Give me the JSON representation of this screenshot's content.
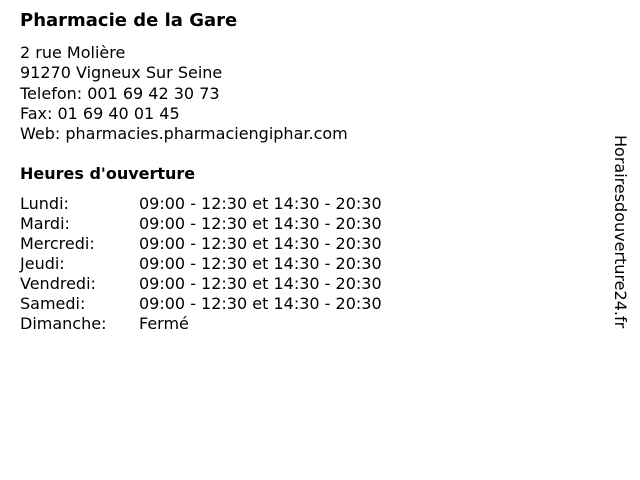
{
  "pharmacy": {
    "name": "Pharmacie de la Gare",
    "address_line1": "2 rue Molière",
    "address_line2": "91270 Vigneux Sur Seine",
    "phone": "Telefon: 001 69 42 30 73",
    "fax": "Fax: 01 69 40 01 45",
    "web": "Web: pharmacies.pharmaciengiphar.com"
  },
  "hours": {
    "title": "Heures d'ouverture",
    "rows": [
      {
        "day": "Lundi:",
        "time": "09:00 - 12:30 et 14:30 - 20:30"
      },
      {
        "day": "Mardi:",
        "time": "09:00 - 12:30 et 14:30 - 20:30"
      },
      {
        "day": "Mercredi:",
        "time": "09:00 - 12:30 et 14:30 - 20:30"
      },
      {
        "day": "Jeudi:",
        "time": "09:00 - 12:30 et 14:30 - 20:30"
      },
      {
        "day": "Vendredi:",
        "time": "09:00 - 12:30 et 14:30 - 20:30"
      },
      {
        "day": "Samedi:",
        "time": "09:00 - 12:30 et 14:30 - 20:30"
      },
      {
        "day": "Dimanche:",
        "time": "Fermé"
      }
    ]
  },
  "watermark": "Horairesdouverture24.fr"
}
